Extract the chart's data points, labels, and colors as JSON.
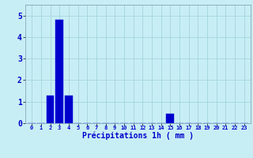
{
  "hours": [
    0,
    1,
    2,
    3,
    4,
    5,
    6,
    7,
    8,
    9,
    10,
    11,
    12,
    13,
    14,
    15,
    16,
    17,
    18,
    19,
    20,
    21,
    22,
    23
  ],
  "values": [
    0,
    0,
    1.3,
    4.8,
    1.3,
    0,
    0,
    0,
    0,
    0,
    0,
    0,
    0,
    0,
    0,
    0.45,
    0,
    0,
    0,
    0,
    0,
    0,
    0,
    0
  ],
  "bar_color": "#0000cc",
  "bar_edge_color": "#0000ee",
  "background_color": "#c8eef5",
  "grid_color": "#a8d8e0",
  "xlabel": "Précipitations 1h ( mm )",
  "ylim": [
    0,
    5.5
  ],
  "yticks": [
    0,
    1,
    2,
    3,
    4,
    5
  ],
  "xlabel_color": "#0000cc",
  "tick_color": "#0000cc"
}
